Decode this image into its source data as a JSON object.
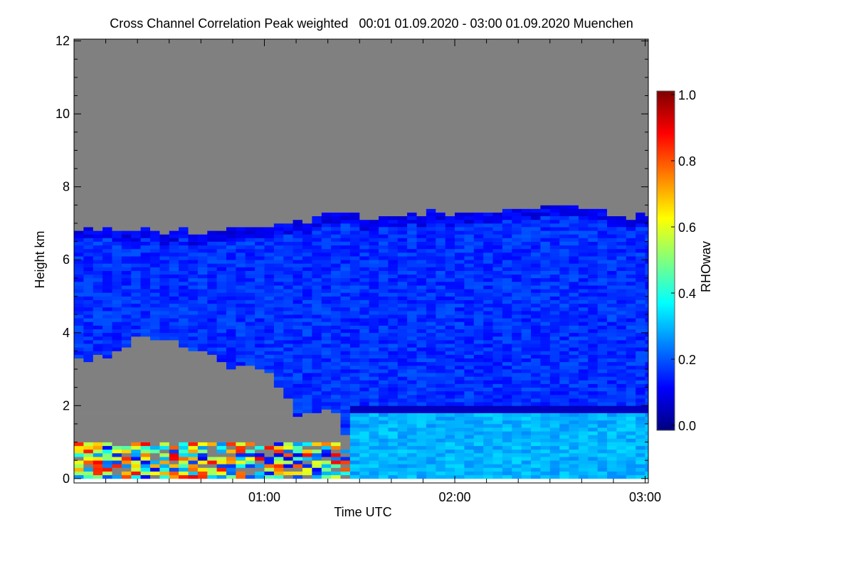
{
  "chart_data": {
    "type": "heatmap",
    "title": "Cross Channel Correlation Peak weighted   00:01 01.09.2020 - 03:00 01.09.2020 Muenchen",
    "xlabel": "Time UTC",
    "ylabel": "Height km",
    "xlim_minutes": [
      0,
      181
    ],
    "ylim": [
      -0.12,
      12.05
    ],
    "x_ticks": [
      {
        "minutes": 60,
        "label": "01:00"
      },
      {
        "minutes": 120,
        "label": "02:00"
      },
      {
        "minutes": 180,
        "label": "03:00"
      }
    ],
    "x_minor_tick_step_minutes": 10,
    "y_ticks": [
      {
        "value": 0,
        "label": "0"
      },
      {
        "value": 2,
        "label": "2"
      },
      {
        "value": 4,
        "label": "4"
      },
      {
        "value": 6,
        "label": "6"
      },
      {
        "value": 8,
        "label": "8"
      },
      {
        "value": 10,
        "label": "10"
      },
      {
        "value": 12,
        "label": "12"
      }
    ],
    "colorbar": {
      "label": "RHOwav",
      "range": [
        0,
        1
      ],
      "colormap": "jet",
      "ticks": [
        {
          "value": 0,
          "label": "0.0"
        },
        {
          "value": 0.2,
          "label": "0.2"
        },
        {
          "value": 0.4,
          "label": "0.4"
        },
        {
          "value": 0.6,
          "label": "0.6"
        },
        {
          "value": 0.8,
          "label": "0.8"
        },
        {
          "value": 1.0,
          "label": "1.0"
        }
      ]
    },
    "missing_color": "#808080",
    "profile_minutes": [
      0,
      10,
      20,
      30,
      40,
      50,
      60,
      70,
      80,
      90,
      100,
      110,
      120,
      130,
      140,
      150,
      160,
      170,
      180
    ],
    "cloud_top_km": [
      6.85,
      6.8,
      6.75,
      6.7,
      6.75,
      6.8,
      6.9,
      7.0,
      7.2,
      7.1,
      7.2,
      7.2,
      7.25,
      7.3,
      7.4,
      7.4,
      7.35,
      7.2,
      7.1
    ],
    "cloud_base_km": [
      3.2,
      3.3,
      3.9,
      3.7,
      3.4,
      3.0,
      2.8,
      1.6,
      1.9,
      0.0,
      0.0,
      0.0,
      0.0,
      0.0,
      0.0,
      0.0,
      0.0,
      0.0,
      0.0
    ],
    "cloud_value": 0.17,
    "rain_onset_minutes": 85,
    "rain_top_km": 1.75,
    "rain_value": 0.3,
    "melting_layer_km": 1.85,
    "melting_layer_value": 0.06,
    "boundary_layer_top_km": 0.9,
    "boundary_layer_value_range": [
      0.1,
      0.9
    ]
  }
}
